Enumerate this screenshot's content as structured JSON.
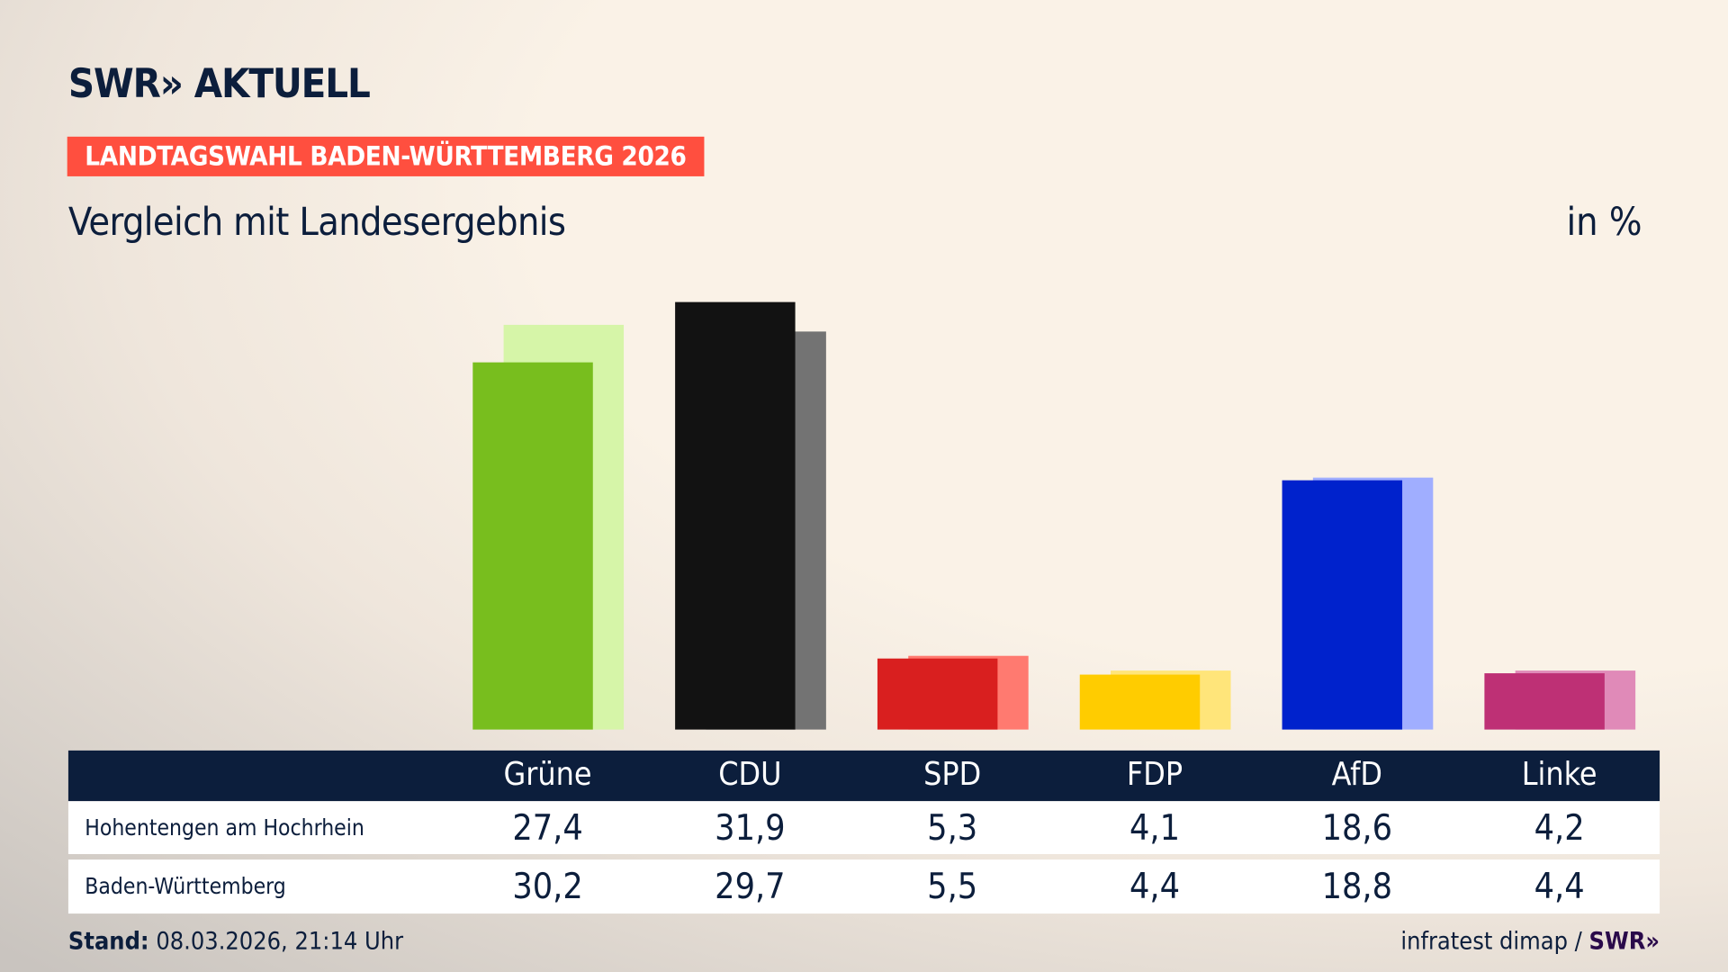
{
  "header": {
    "logo": "SWR» AKTUELL",
    "badge": "LANDTAGSWAHL BADEN-WÜRTTEMBERG 2026",
    "subtitle": "Vergleich mit Landesergebnis",
    "unit": "in %"
  },
  "chart_data": {
    "type": "bar",
    "categories": [
      "Grüne",
      "CDU",
      "SPD",
      "FDP",
      "AfD",
      "Linke"
    ],
    "series": [
      {
        "name": "Hohentengen am Hochrhein",
        "values": [
          27.4,
          31.9,
          5.3,
          4.1,
          18.6,
          4.2
        ]
      },
      {
        "name": "Baden-Württemberg",
        "values": [
          30.2,
          29.7,
          5.5,
          4.4,
          18.8,
          4.4
        ]
      }
    ],
    "colors": [
      "#78be1e",
      "#121212",
      "#d91f1f",
      "#ffcc00",
      "#0022cc",
      "#be3075"
    ],
    "colors_light": [
      "#d6f5a8",
      "#737373",
      "#ff7a70",
      "#ffe57a",
      "#a0aeff",
      "#e08ab8"
    ],
    "ylim": [
      0,
      32
    ],
    "grid": false
  },
  "footer": {
    "stand_label": "Stand:",
    "stand_value": "08.03.2026, 21:14 Uhr",
    "source": "infratest dimap /",
    "source_logo": "SWR»"
  }
}
